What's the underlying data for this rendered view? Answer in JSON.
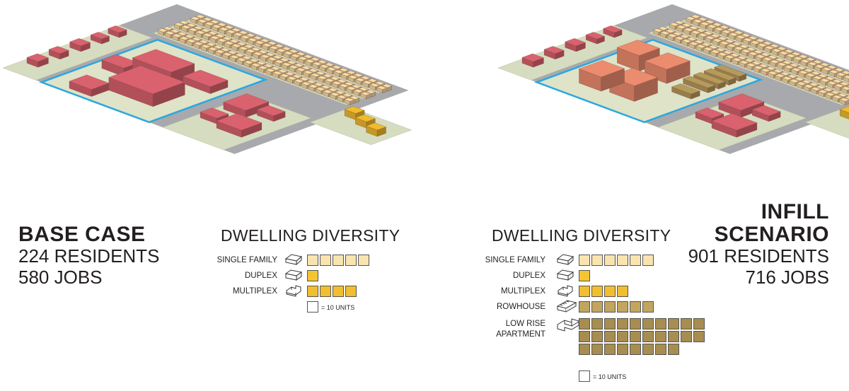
{
  "colors": {
    "single_family": "#f5dfa6",
    "duplex": "#f2c230",
    "multiplex": "#efbc2b",
    "rowhouse": "#b59b5a",
    "low_rise": "#a68b4f",
    "commercial": "#d9626e",
    "infill": "#ec8c6e",
    "site_outline": "#29a8e0"
  },
  "base": {
    "title": "BASE CASE",
    "residents": "224 RESIDENTS",
    "jobs": "580 JOBS",
    "legend_title": "DWELLING DIVERSITY",
    "rows": [
      {
        "label": "SINGLE FAMILY",
        "icon": "single-family-house-icon",
        "units": 5,
        "color": "#f9e4b0"
      },
      {
        "label": "DUPLEX",
        "icon": "duplex-icon",
        "units": 1,
        "color": "#f4c531"
      },
      {
        "label": "MULTIPLEX",
        "icon": "multiplex-icon",
        "units": 4,
        "color": "#f1be2f"
      }
    ],
    "unit_note": "= 10 UNITS"
  },
  "infill": {
    "title_line1": "INFILL",
    "title_line2": "SCENARIO",
    "residents": "901 RESIDENTS",
    "jobs": "716 JOBS",
    "legend_title": "DWELLING DIVERSITY",
    "rows": [
      {
        "label": "SINGLE FAMILY",
        "icon": "single-family-house-icon",
        "units": 6,
        "color": "#f9e4b0"
      },
      {
        "label": "DUPLEX",
        "icon": "duplex-icon",
        "units": 1,
        "color": "#f4c531"
      },
      {
        "label": "MULTIPLEX",
        "icon": "multiplex-icon",
        "units": 4,
        "color": "#f1be2f"
      },
      {
        "label": "ROWHOUSE",
        "icon": "rowhouse-icon",
        "units": 6,
        "color": "#c2a55f"
      },
      {
        "label": "LOW RISE\nAPARTMENT",
        "icon": "low-rise-apartment-icon",
        "units": 28,
        "color": "#a88d50"
      }
    ],
    "unit_note": "= 10 UNITS"
  }
}
